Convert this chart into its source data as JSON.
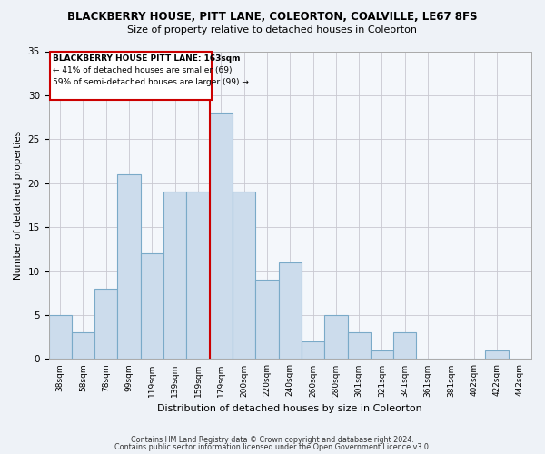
{
  "title": "BLACKBERRY HOUSE, PITT LANE, COLEORTON, COALVILLE, LE67 8FS",
  "subtitle": "Size of property relative to detached houses in Coleorton",
  "xlabel": "Distribution of detached houses by size in Coleorton",
  "ylabel": "Number of detached properties",
  "bin_labels": [
    "38sqm",
    "58sqm",
    "78sqm",
    "99sqm",
    "119sqm",
    "139sqm",
    "159sqm",
    "179sqm",
    "200sqm",
    "220sqm",
    "240sqm",
    "260sqm",
    "280sqm",
    "301sqm",
    "321sqm",
    "341sqm",
    "361sqm",
    "381sqm",
    "402sqm",
    "422sqm",
    "442sqm"
  ],
  "bin_values": [
    5,
    3,
    8,
    21,
    12,
    19,
    19,
    28,
    19,
    9,
    11,
    2,
    5,
    3,
    1,
    3,
    0,
    0,
    0,
    1,
    0
  ],
  "bar_color": "#ccdcec",
  "bar_edge_color": "#7aaac8",
  "annotation_title": "BLACKBERRY HOUSE PITT LANE: 163sqm",
  "annotation_line2": "← 41% of detached houses are smaller (69)",
  "annotation_line3": "59% of semi-detached houses are larger (99) →",
  "vline_color": "#cc0000",
  "box_edge_color": "#cc0000",
  "ylim": [
    0,
    35
  ],
  "yticks": [
    0,
    5,
    10,
    15,
    20,
    25,
    30,
    35
  ],
  "footer1": "Contains HM Land Registry data © Crown copyright and database right 2024.",
  "footer2": "Contains public sector information licensed under the Open Government Licence v3.0.",
  "bg_color": "#eef2f7",
  "plot_bg_color": "#f4f7fb"
}
